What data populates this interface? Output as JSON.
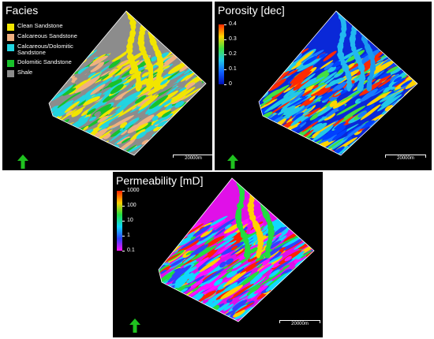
{
  "facies": {
    "title": "Facies",
    "legend": [
      {
        "label": "Clean Sandstone",
        "color": "#f2e500"
      },
      {
        "label": "Calcareous Sandstone",
        "color": "#f0b080"
      },
      {
        "label": "Calcareous/Dolomitic Sandstone",
        "color": "#22d4e0"
      },
      {
        "label": "Dolomitic Sandstone",
        "color": "#18c22a"
      },
      {
        "label": "Shale",
        "color": "#8c8c8c"
      }
    ],
    "scale_label": "20000m"
  },
  "porosity": {
    "title": "Porosity [dec]",
    "ticks": [
      "0.4",
      "0.3",
      "0.2",
      "0.1",
      "0"
    ],
    "colors": [
      "#ff2a00",
      "#ffd400",
      "#44e040",
      "#22c8e8",
      "#1060ff",
      "#0010b8"
    ],
    "scale_label": "20000m"
  },
  "permeability": {
    "title": "Permeability [mD]",
    "ticks": [
      "1000",
      "100",
      "10",
      "1",
      "0.1"
    ],
    "colors": [
      "#ff2200",
      "#ffd000",
      "#22dd40",
      "#10d8ff",
      "#3040ff",
      "#ff10ff"
    ],
    "scale_label": "20000m"
  }
}
